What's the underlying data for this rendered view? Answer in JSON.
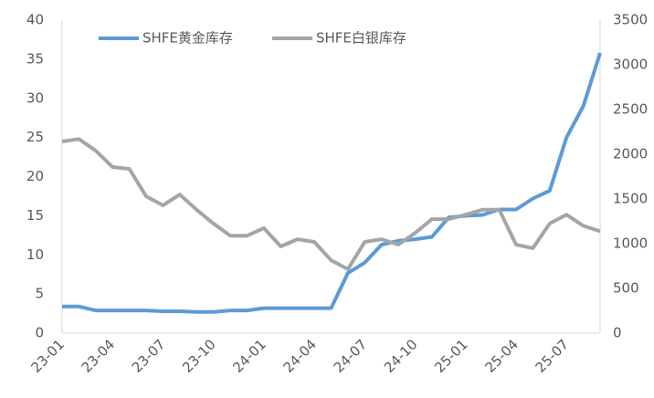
{
  "chart_data": {
    "type": "line",
    "categories": [
      "23-01",
      null,
      null,
      "23-04",
      null,
      null,
      "23-07",
      null,
      null,
      "23-10",
      null,
      null,
      "24-01",
      null,
      null,
      "24-04",
      null,
      null,
      "24-07",
      null,
      null,
      "24-10",
      null,
      null,
      "25-01",
      null,
      null,
      "25-04",
      null,
      null,
      "25-07",
      null,
      null
    ],
    "series": [
      {
        "name": "SHFE黄金库存",
        "color": "#5b9bd5",
        "axis": "y",
        "values": [
          3.4,
          3.4,
          2.9,
          2.9,
          2.9,
          2.9,
          2.8,
          2.8,
          2.7,
          2.7,
          2.9,
          2.9,
          3.2,
          3.2,
          3.2,
          3.2,
          3.2,
          7.7,
          9.0,
          11.3,
          11.8,
          12.0,
          12.3,
          14.8,
          15.0,
          15.1,
          15.8,
          15.8,
          17.2,
          18.2,
          25,
          29,
          35.8
        ]
      },
      {
        "name": "SHFE白银库存",
        "color": "#a5a5a5",
        "axis": "y2",
        "values": [
          2143,
          2170,
          2040,
          1857,
          1837,
          1530,
          1430,
          1550,
          1380,
          1225,
          1090,
          1090,
          1175,
          970,
          1050,
          1020,
          815,
          715,
          1020,
          1050,
          990,
          1120,
          1275,
          1275,
          1325,
          1380,
          1380,
          990,
          950,
          1225,
          1325,
          1200,
          1140
        ]
      }
    ],
    "ylim": [
      0,
      40
    ],
    "yticks": [
      0,
      5,
      10,
      15,
      20,
      25,
      30,
      35,
      40
    ],
    "y2lim": [
      0,
      3500
    ],
    "y2ticks": [
      0,
      500,
      1000,
      1500,
      2000,
      2500,
      3000,
      3500
    ],
    "legend": "top"
  }
}
